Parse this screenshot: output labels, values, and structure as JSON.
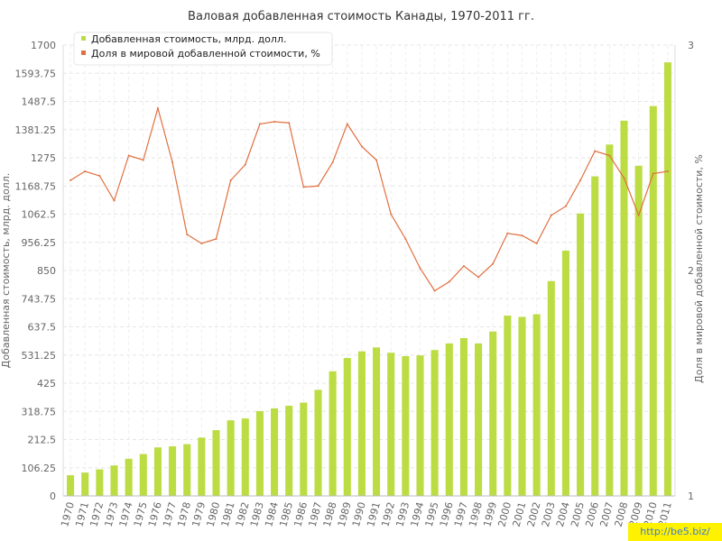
{
  "chart_data": {
    "type": "bar",
    "title": "Валовая добавленная стоимость Канады, 1970-2011 гг.",
    "ylabel": "Добавленная стоимость, млрд. долл.",
    "y2label": "Доля в мировой добавленной стоимости, %",
    "ylim": [
      0,
      1700
    ],
    "y2lim": [
      1,
      3
    ],
    "y_ticks": [
      "0",
      "106.25",
      "212.5",
      "318.75",
      "425",
      "531.25",
      "637.5",
      "743.75",
      "850",
      "956.25",
      "1062.5",
      "1168.75",
      "1275",
      "1381.25",
      "1487.5",
      "1593.75",
      "1700"
    ],
    "y2_ticks": [
      "1",
      "2",
      "3"
    ],
    "grid": true,
    "legend_position": "top-left",
    "categories": [
      "1970",
      "1971",
      "1972",
      "1973",
      "1974",
      "1975",
      "1976",
      "1977",
      "1978",
      "1979",
      "1980",
      "1981",
      "1982",
      "1983",
      "1984",
      "1985",
      "1986",
      "1987",
      "1988",
      "1989",
      "1990",
      "1991",
      "1992",
      "1993",
      "1994",
      "1995",
      "1996",
      "1997",
      "1998",
      "1999",
      "2000",
      "2001",
      "2002",
      "2003",
      "2004",
      "2005",
      "2006",
      "2007",
      "2008",
      "2009",
      "2010",
      "2011"
    ],
    "series": [
      {
        "name": "Добавленная стоимость, млрд. долл.",
        "type": "bar",
        "axis": "left",
        "color": "#bcdc43",
        "values": [
          78,
          88,
          100,
          115,
          140,
          158,
          183,
          187,
          195,
          220,
          248,
          285,
          292,
          320,
          330,
          340,
          352,
          400,
          470,
          520,
          545,
          560,
          540,
          527,
          530,
          550,
          575,
          595,
          575,
          620,
          680,
          675,
          685,
          810,
          925,
          1065,
          1205,
          1325,
          1415,
          1245,
          1470,
          1635
        ]
      },
      {
        "name": "Доля в мировой добавленной стоимости, %",
        "type": "line",
        "axis": "right",
        "color": "#e07040",
        "values": [
          2.4,
          2.44,
          2.42,
          2.31,
          2.51,
          2.49,
          2.72,
          2.48,
          2.16,
          2.12,
          2.14,
          2.4,
          2.47,
          2.65,
          2.66,
          2.655,
          2.37,
          2.375,
          2.48,
          2.65,
          2.55,
          2.49,
          2.25,
          2.14,
          2.01,
          1.91,
          1.95,
          2.02,
          1.97,
          2.03,
          2.165,
          2.155,
          2.12,
          2.245,
          2.285,
          2.4,
          2.53,
          2.51,
          2.41,
          2.245,
          2.43,
          2.44
        ]
      }
    ]
  },
  "watermark": "http://be5.biz/"
}
